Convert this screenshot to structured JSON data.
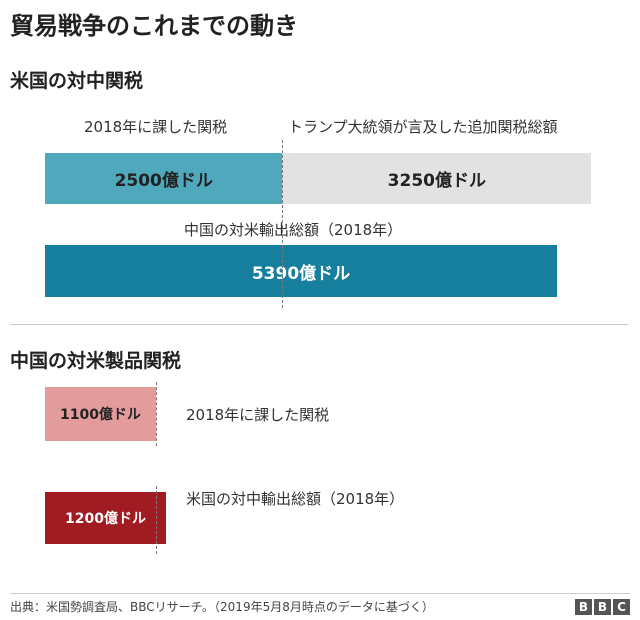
{
  "title": "貿易戦争のこれまでの動き",
  "colors": {
    "us_tariff": "#4fa8bc",
    "us_additional": "#e2e2e2",
    "china_exports": "#167f9e",
    "china_tariff": "#e39b9c",
    "china_imports": "#a01b22"
  },
  "chart_data": [
    {
      "type": "bar",
      "title": "米国の対中関税",
      "unit": "億ドル",
      "scale_max": 5390,
      "bars": [
        {
          "label": "2018年に課した関税",
          "value": 2500,
          "value_label": "2500億ドル"
        },
        {
          "label": "トランプ大統領が言及した追加関税総額",
          "value": 3250,
          "value_label": "3250億ドル",
          "stacked_on": 2500
        },
        {
          "label": "中国の対米輸出総額（2018年）",
          "value": 5390,
          "value_label": "5390億ドル"
        }
      ]
    },
    {
      "type": "bar",
      "title": "中国の対米製品関税",
      "unit": "億ドル",
      "bars": [
        {
          "label": "2018年に課した関税",
          "value": 1100,
          "value_label": "1100億ドル"
        },
        {
          "label": "米国の対中輸出総額（2018年）",
          "value": 1200,
          "value_label": "1200億ドル"
        }
      ]
    }
  ],
  "footer": {
    "source": "出典：米国勢調査局、BBCリサーチ。（2019年5月8月時点のデータに基づく）",
    "logo": [
      "B",
      "B",
      "C"
    ]
  }
}
